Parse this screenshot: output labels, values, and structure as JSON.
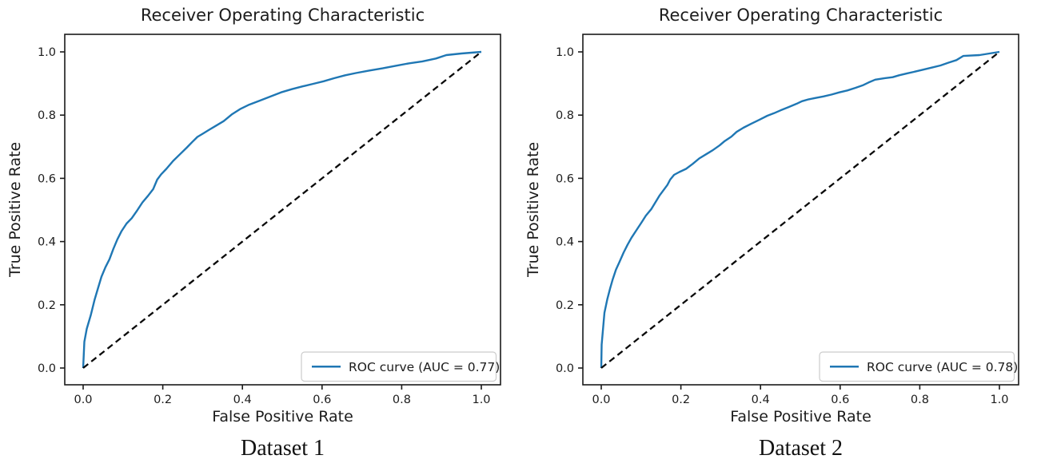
{
  "page": {
    "background": "#ffffff"
  },
  "colors": {
    "roc_curve": "#1f77b4",
    "chance_line": "#0a0a0a",
    "spine": "#1a1a1a",
    "legend_border": "#cccccc",
    "legend_background": "#ffffff",
    "text": "#1c1c1c"
  },
  "chart_data": [
    {
      "type": "line",
      "title": "Receiver Operating Characteristic",
      "xlabel": "False Positive Rate",
      "ylabel": "True Positive Rate",
      "caption": "Dataset 1",
      "auc": 0.77,
      "xlim": [
        -0.05,
        1.05
      ],
      "ylim": [
        -0.05,
        1.05
      ],
      "xticks": [
        0.0,
        0.2,
        0.4,
        0.6,
        0.8,
        1.0
      ],
      "yticks": [
        0.0,
        0.2,
        0.4,
        0.6,
        0.8,
        1.0
      ],
      "grid": false,
      "legend": {
        "position": "lower right",
        "entries": [
          {
            "label": "ROC curve (AUC = 0.77)",
            "color": "#1f77b4",
            "style": "solid"
          }
        ]
      },
      "series": [
        {
          "name": "ROC curve",
          "color": "#1f77b4",
          "style": "solid",
          "x": [
            0,
            0.003,
            0.009,
            0.019,
            0.029,
            0.037,
            0.046,
            0.056,
            0.066,
            0.076,
            0.086,
            0.096,
            0.109,
            0.122,
            0.136,
            0.149,
            0.163,
            0.176,
            0.186,
            0.196,
            0.209,
            0.226,
            0.243,
            0.26,
            0.273,
            0.287,
            0.3,
            0.317,
            0.333,
            0.353,
            0.373,
            0.394,
            0.417,
            0.444,
            0.471,
            0.497,
            0.524,
            0.551,
            0.578,
            0.604,
            0.631,
            0.658,
            0.685,
            0.718,
            0.752,
            0.785,
            0.819,
            0.852,
            0.886,
            0.912,
            0.95,
            1.0
          ],
          "y": [
            0,
            0.083,
            0.124,
            0.167,
            0.217,
            0.251,
            0.289,
            0.319,
            0.344,
            0.377,
            0.407,
            0.432,
            0.457,
            0.474,
            0.499,
            0.524,
            0.545,
            0.566,
            0.596,
            0.613,
            0.63,
            0.655,
            0.676,
            0.697,
            0.714,
            0.731,
            0.741,
            0.754,
            0.766,
            0.781,
            0.802,
            0.819,
            0.833,
            0.846,
            0.859,
            0.872,
            0.882,
            0.891,
            0.899,
            0.907,
            0.917,
            0.926,
            0.933,
            0.941,
            0.948,
            0.956,
            0.964,
            0.97,
            0.979,
            0.99,
            0.995,
            1.0
          ]
        },
        {
          "name": "chance diagonal",
          "color": "#0a0a0a",
          "style": "dashed",
          "x": [
            0,
            1
          ],
          "y": [
            0,
            1
          ]
        }
      ]
    },
    {
      "type": "line",
      "title": "Receiver Operating Characteristic",
      "xlabel": "False Positive Rate",
      "ylabel": "True Positive Rate",
      "caption": "Dataset 2",
      "auc": 0.78,
      "xlim": [
        -0.05,
        1.05
      ],
      "ylim": [
        -0.05,
        1.05
      ],
      "xticks": [
        0.0,
        0.2,
        0.4,
        0.6,
        0.8,
        1.0
      ],
      "yticks": [
        0.0,
        0.2,
        0.4,
        0.6,
        0.8,
        1.0
      ],
      "grid": false,
      "legend": {
        "position": "lower right",
        "entries": [
          {
            "label": "ROC curve (AUC = 0.78)",
            "color": "#1f77b4",
            "style": "solid"
          }
        ]
      },
      "series": [
        {
          "name": "ROC curve",
          "color": "#1f77b4",
          "style": "solid",
          "x": [
            0,
            0.001,
            0.008,
            0.015,
            0.022,
            0.029,
            0.037,
            0.046,
            0.056,
            0.066,
            0.076,
            0.089,
            0.102,
            0.112,
            0.126,
            0.136,
            0.146,
            0.156,
            0.166,
            0.173,
            0.183,
            0.196,
            0.213,
            0.23,
            0.246,
            0.263,
            0.28,
            0.297,
            0.31,
            0.327,
            0.34,
            0.357,
            0.377,
            0.397,
            0.417,
            0.434,
            0.45,
            0.47,
            0.491,
            0.504,
            0.521,
            0.541,
            0.558,
            0.578,
            0.598,
            0.618,
            0.638,
            0.658,
            0.671,
            0.688,
            0.712,
            0.732,
            0.748,
            0.768,
            0.789,
            0.809,
            0.832,
            0.852,
            0.872,
            0.892,
            0.909,
            0.95,
            1.0
          ],
          "y": [
            0,
            0.074,
            0.175,
            0.217,
            0.251,
            0.281,
            0.311,
            0.336,
            0.365,
            0.39,
            0.412,
            0.437,
            0.462,
            0.482,
            0.503,
            0.524,
            0.545,
            0.562,
            0.579,
            0.596,
            0.611,
            0.62,
            0.63,
            0.646,
            0.663,
            0.676,
            0.689,
            0.704,
            0.718,
            0.732,
            0.747,
            0.76,
            0.773,
            0.785,
            0.798,
            0.806,
            0.815,
            0.825,
            0.836,
            0.844,
            0.85,
            0.855,
            0.859,
            0.865,
            0.872,
            0.878,
            0.886,
            0.895,
            0.903,
            0.912,
            0.917,
            0.92,
            0.926,
            0.932,
            0.938,
            0.944,
            0.951,
            0.957,
            0.966,
            0.974,
            0.987,
            0.99,
            1.0
          ]
        },
        {
          "name": "chance diagonal",
          "color": "#0a0a0a",
          "style": "dashed",
          "x": [
            0,
            1
          ],
          "y": [
            0,
            1
          ]
        }
      ]
    }
  ]
}
